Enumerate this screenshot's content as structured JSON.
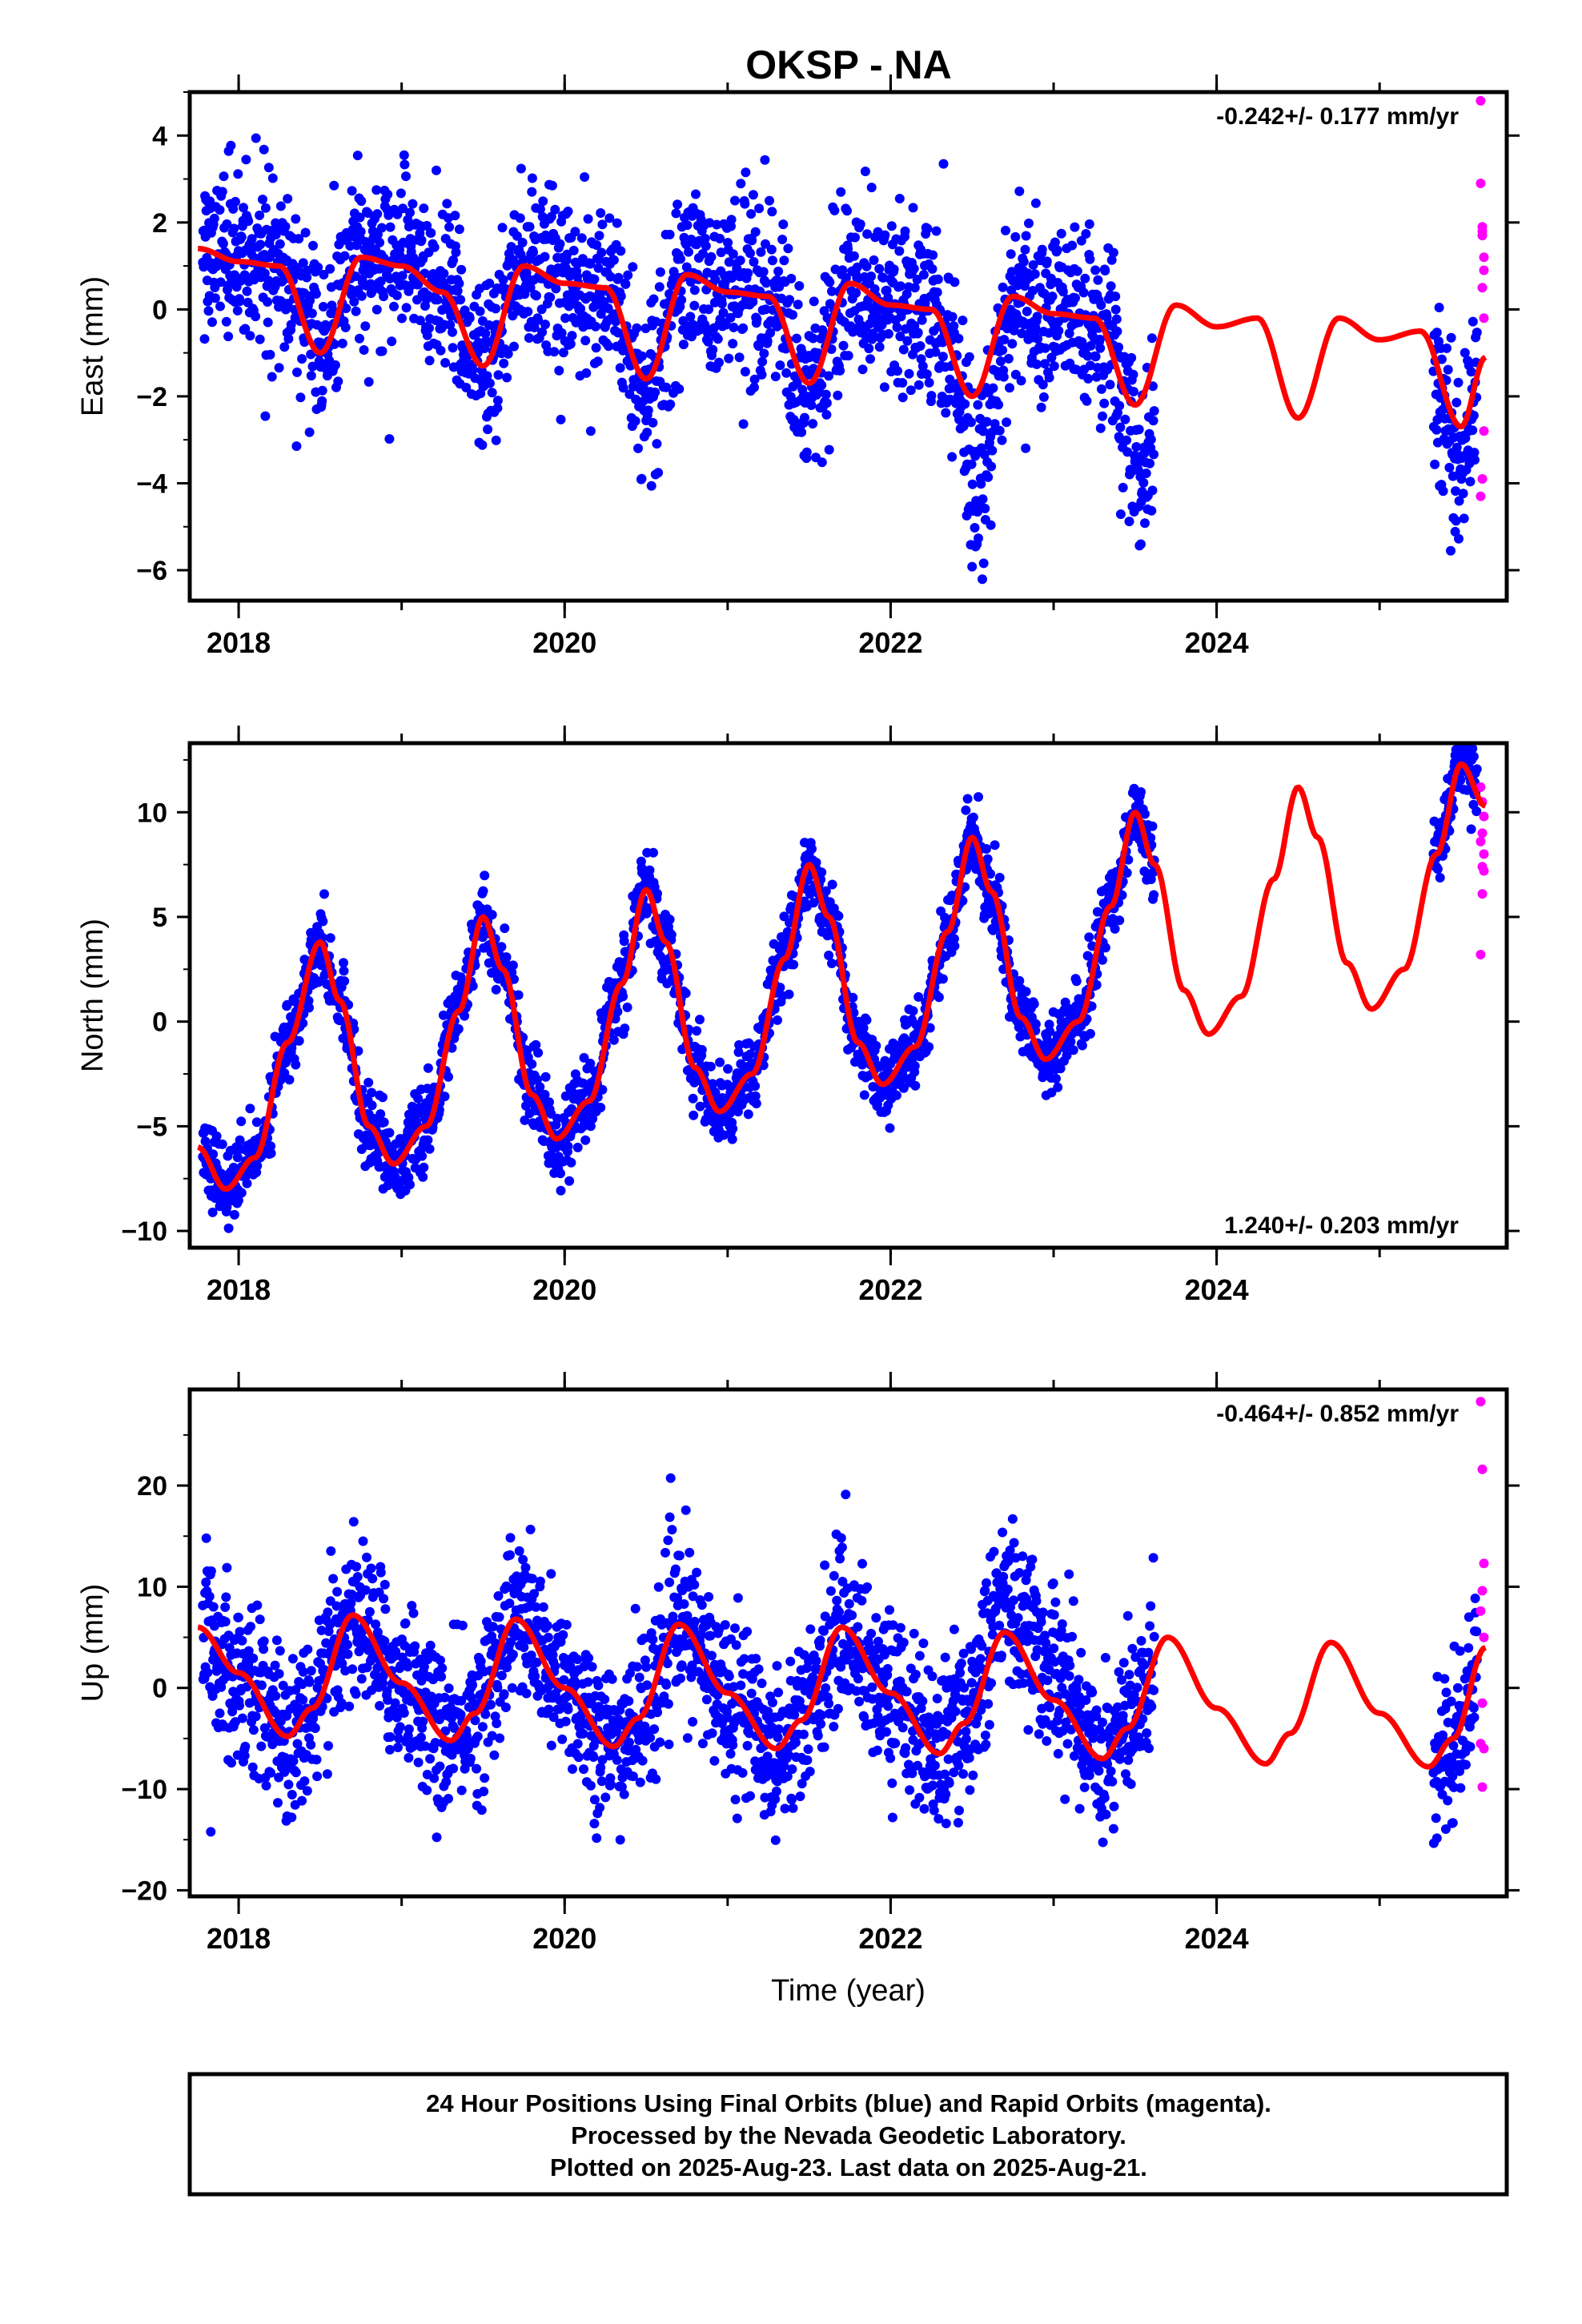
{
  "title": "OKSP - NA",
  "colors": {
    "final": "#0000ff",
    "rapid": "#ff00ff",
    "model": "#ff0000",
    "frame": "#000000"
  },
  "chart_data": [
    {
      "type": "scatter",
      "ylabel": "East (mm)",
      "rate_label": "-0.242+/- 0.177 mm/yr",
      "rate_position": "top-right",
      "xlim": [
        2017.7,
        2025.78
      ],
      "ylim": [
        -6.7,
        5.0
      ],
      "xticks": [
        2018,
        2020,
        2022,
        2024
      ],
      "xtick_labels": [
        "2018",
        "2020",
        "2022",
        "2024"
      ],
      "yticks": [
        -6,
        -4,
        -2,
        0,
        2,
        4
      ],
      "ytick_labels": [
        "−6",
        "−4",
        "−2",
        "0",
        "2",
        "4"
      ],
      "model": {
        "name": "fit",
        "x": [
          2017.75,
          2018.0,
          2018.25,
          2018.5,
          2018.75,
          2019.0,
          2019.25,
          2019.5,
          2019.75,
          2020.0,
          2020.25,
          2020.5,
          2020.75,
          2021.0,
          2021.25,
          2021.5,
          2021.75,
          2022.0,
          2022.25,
          2022.5,
          2022.75,
          2023.0,
          2023.25,
          2023.5,
          2023.75,
          2024.0,
          2024.25,
          2024.5,
          2024.75,
          2025.0,
          2025.25,
          2025.5,
          2025.65
        ],
        "y": [
          1.4,
          1.1,
          1.0,
          -1.0,
          1.2,
          1.0,
          0.4,
          -1.3,
          1.0,
          0.6,
          0.5,
          -1.6,
          0.8,
          0.4,
          0.3,
          -1.7,
          0.6,
          0.1,
          0.0,
          -2.0,
          0.3,
          -0.1,
          -0.2,
          -2.2,
          0.1,
          -0.4,
          -0.2,
          -2.5,
          -0.2,
          -0.7,
          -0.5,
          -2.7,
          -1.1
        ]
      },
      "final_series": {
        "segments": [
          [
            2017.78,
            2023.62
          ],
          [
            2025.33,
            2025.6
          ]
        ],
        "scatter_sd": 1.0,
        "extra_dips": [
          {
            "center": 2022.55,
            "width": 0.12,
            "depth": -2.0
          },
          {
            "center": 2023.55,
            "width": 0.08,
            "depth": -1.8
          },
          {
            "center": 2025.45,
            "width": 0.1,
            "depth": -1.0
          }
        ]
      },
      "rapid_series": {
        "x": [
          2025.62,
          2025.62,
          2025.63,
          2025.63,
          2025.64,
          2025.64,
          2025.63,
          2025.64,
          2025.63,
          2025.62,
          2025.64,
          2025.63
        ],
        "y": [
          4.8,
          2.9,
          1.9,
          1.8,
          1.2,
          0.9,
          0.5,
          -2.8,
          -3.9,
          -4.3,
          -0.2,
          1.7
        ]
      }
    },
    {
      "type": "scatter",
      "ylabel": "North (mm)",
      "rate_label": "1.240+/- 0.203 mm/yr",
      "rate_position": "bottom-right",
      "xlim": [
        2017.7,
        2025.78
      ],
      "ylim": [
        -10.8,
        13.3
      ],
      "xticks": [
        2018,
        2020,
        2022,
        2024
      ],
      "xtick_labels": [
        "2018",
        "2020",
        "2022",
        "2024"
      ],
      "yticks": [
        -10,
        -5,
        0,
        5,
        10
      ],
      "ytick_labels": [
        "−10",
        "−5",
        "0",
        "5",
        "10"
      ],
      "model": {
        "name": "fit",
        "x": [
          2017.75,
          2017.92,
          2018.1,
          2018.3,
          2018.5,
          2018.62,
          2018.8,
          2018.95,
          2019.15,
          2019.35,
          2019.5,
          2019.62,
          2019.8,
          2019.95,
          2020.15,
          2020.35,
          2020.5,
          2020.62,
          2020.8,
          2020.95,
          2021.15,
          2021.35,
          2021.5,
          2021.62,
          2021.8,
          2021.95,
          2022.15,
          2022.35,
          2022.5,
          2022.62,
          2022.8,
          2022.95,
          2023.15,
          2023.35,
          2023.5,
          2023.62,
          2023.8,
          2023.95,
          2024.15,
          2024.35,
          2024.5,
          2024.62,
          2024.8,
          2024.95,
          2025.15,
          2025.35,
          2025.5,
          2025.65
        ],
        "y": [
          -6.0,
          -8.0,
          -6.5,
          -1.0,
          3.8,
          1.0,
          -5.0,
          -6.8,
          -5.0,
          0.5,
          5.0,
          2.5,
          -3.5,
          -5.6,
          -3.8,
          1.8,
          6.3,
          3.8,
          -2.2,
          -4.3,
          -2.5,
          3.0,
          7.5,
          5.0,
          -1.0,
          -3.0,
          -1.2,
          4.3,
          8.8,
          6.2,
          0.2,
          -1.8,
          0.0,
          5.5,
          10.0,
          7.5,
          1.5,
          -0.6,
          1.2,
          6.8,
          11.2,
          8.8,
          2.8,
          0.6,
          2.5,
          8.0,
          12.3,
          10.3
        ]
      },
      "final_series": {
        "segments": [
          [
            2017.78,
            2023.62
          ],
          [
            2025.33,
            2025.6
          ]
        ],
        "scatter_sd": 0.9,
        "extra_dips": []
      },
      "rapid_series": {
        "x": [
          2025.62,
          2025.63,
          2025.64,
          2025.63,
          2025.62,
          2025.64,
          2025.63,
          2025.64,
          2025.63,
          2025.62
        ],
        "y": [
          11.2,
          10.5,
          9.8,
          9.0,
          8.6,
          8.0,
          7.4,
          7.2,
          6.1,
          3.2
        ]
      }
    },
    {
      "type": "scatter",
      "ylabel": "Up (mm)",
      "xlabel": "Time (year)",
      "rate_label": "-0.464+/- 0.852 mm/yr",
      "rate_position": "top-right",
      "xlim": [
        2017.7,
        2025.78
      ],
      "ylim": [
        -20.6,
        29.5
      ],
      "xticks": [
        2018,
        2020,
        2022,
        2024
      ],
      "xtick_labels": [
        "2018",
        "2020",
        "2022",
        "2024"
      ],
      "yticks": [
        -20,
        -10,
        0,
        10,
        20
      ],
      "ytick_labels": [
        "−20",
        "−10",
        "0",
        "10",
        "20"
      ],
      "model": {
        "name": "fit",
        "x": [
          2017.75,
          2018.0,
          2018.3,
          2018.45,
          2018.7,
          2019.0,
          2019.3,
          2019.45,
          2019.7,
          2020.0,
          2020.3,
          2020.45,
          2020.7,
          2021.0,
          2021.3,
          2021.45,
          2021.7,
          2022.0,
          2022.3,
          2022.45,
          2022.7,
          2023.0,
          2023.3,
          2023.45,
          2023.7,
          2024.0,
          2024.3,
          2024.45,
          2024.7,
          2025.0,
          2025.3,
          2025.45,
          2025.65
        ],
        "y": [
          6.0,
          1.5,
          -4.8,
          -2.0,
          7.2,
          0.5,
          -5.2,
          -2.5,
          6.8,
          0.0,
          -5.8,
          -3.0,
          6.3,
          -0.5,
          -6.0,
          -3.2,
          6.0,
          -0.5,
          -6.5,
          -3.5,
          5.5,
          -1.2,
          -7.0,
          -4.0,
          5.0,
          -2.0,
          -7.5,
          -4.5,
          4.5,
          -2.5,
          -7.8,
          -5.0,
          4.0
        ]
      },
      "final_series": {
        "segments": [
          [
            2017.78,
            2023.62
          ],
          [
            2025.33,
            2025.6
          ]
        ],
        "scatter_sd": 4.0,
        "extra_dips": [
          {
            "center": 2022.85,
            "width": 0.35,
            "depth": 3.5
          }
        ]
      },
      "rapid_series": {
        "x": [
          2025.62,
          2025.63,
          2025.64,
          2025.63,
          2025.62,
          2025.64,
          2025.63,
          2025.62,
          2025.64,
          2025.63
        ],
        "y": [
          28.3,
          21.6,
          12.3,
          9.6,
          7.6,
          5.0,
          -1.5,
          -5.5,
          -6.0,
          -9.8
        ]
      }
    }
  ],
  "footer": {
    "line1": "24 Hour Positions Using Final Orbits (blue) and Rapid Orbits (magenta).",
    "line2": "Processed by the Nevada Geodetic Laboratory.",
    "line3": "Plotted on 2025-Aug-23. Last data on 2025-Aug-21."
  }
}
